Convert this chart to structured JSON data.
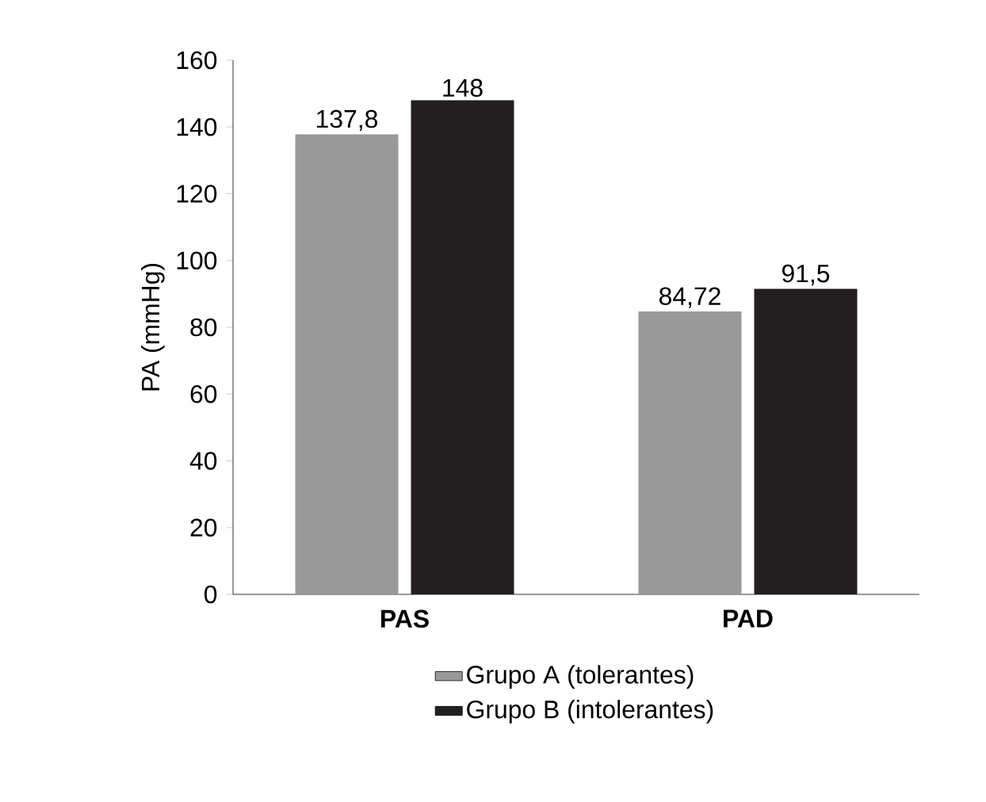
{
  "chart_data": {
    "type": "bar",
    "ylabel": "PA (mmHg)",
    "categories": [
      "PAS",
      "PAD"
    ],
    "series": [
      {
        "name": "Grupo A (tolerantes)",
        "color": "#999999",
        "values": [
          137.8,
          84.72
        ],
        "value_labels": [
          "137,8",
          "84,72"
        ]
      },
      {
        "name": "Grupo B (intolerantes)",
        "color": "#231f20",
        "values": [
          148,
          91.5
        ],
        "value_labels": [
          "148",
          "91,5"
        ]
      }
    ],
    "ylim": [
      0,
      160
    ],
    "yticks": [
      0,
      20,
      40,
      60,
      80,
      100,
      120,
      140,
      160
    ],
    "grid": false,
    "legend": "bottom"
  }
}
